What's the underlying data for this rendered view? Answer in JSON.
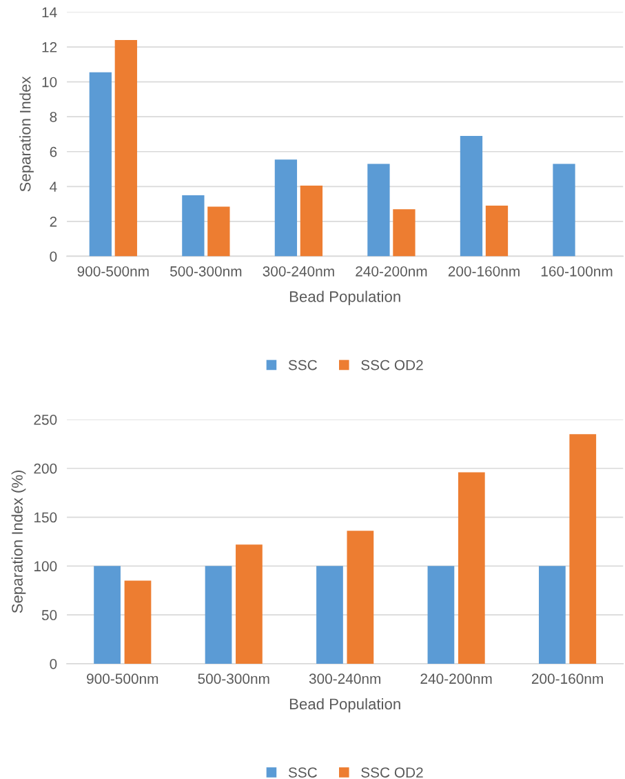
{
  "chart_data": [
    {
      "type": "bar",
      "xlabel": "Bead Population",
      "ylabel": "Separation Index",
      "categories": [
        "900-500nm",
        "500-300nm",
        "300-240nm",
        "240-200nm",
        "200-160nm",
        "160-100nm"
      ],
      "series": [
        {
          "name": "SSC",
          "color": "#5b9bd5",
          "values": [
            10.55,
            3.5,
            5.55,
            5.3,
            6.9,
            5.3
          ]
        },
        {
          "name": "SSC OD2",
          "color": "#ed7d31",
          "values": [
            12.4,
            2.85,
            4.05,
            2.7,
            2.9,
            null
          ]
        }
      ],
      "ylim": [
        0,
        14
      ],
      "yticks": [
        0,
        2,
        4,
        6,
        8,
        10,
        12,
        14
      ],
      "grid": "y",
      "legend": "bottom"
    },
    {
      "type": "bar",
      "xlabel": "Bead Population",
      "ylabel": "Separation Index (%)",
      "categories": [
        "900-500nm",
        "500-300nm",
        "300-240nm",
        "240-200nm",
        "200-160nm"
      ],
      "series": [
        {
          "name": "SSC",
          "color": "#5b9bd5",
          "values": [
            100,
            100,
            100,
            100,
            100
          ]
        },
        {
          "name": "SSC OD2",
          "color": "#ed7d31",
          "values": [
            85,
            122,
            136,
            196,
            235
          ]
        }
      ],
      "ylim": [
        0,
        250
      ],
      "yticks": [
        0,
        50,
        100,
        150,
        200,
        250
      ],
      "grid": "y",
      "legend": "bottom"
    }
  ]
}
